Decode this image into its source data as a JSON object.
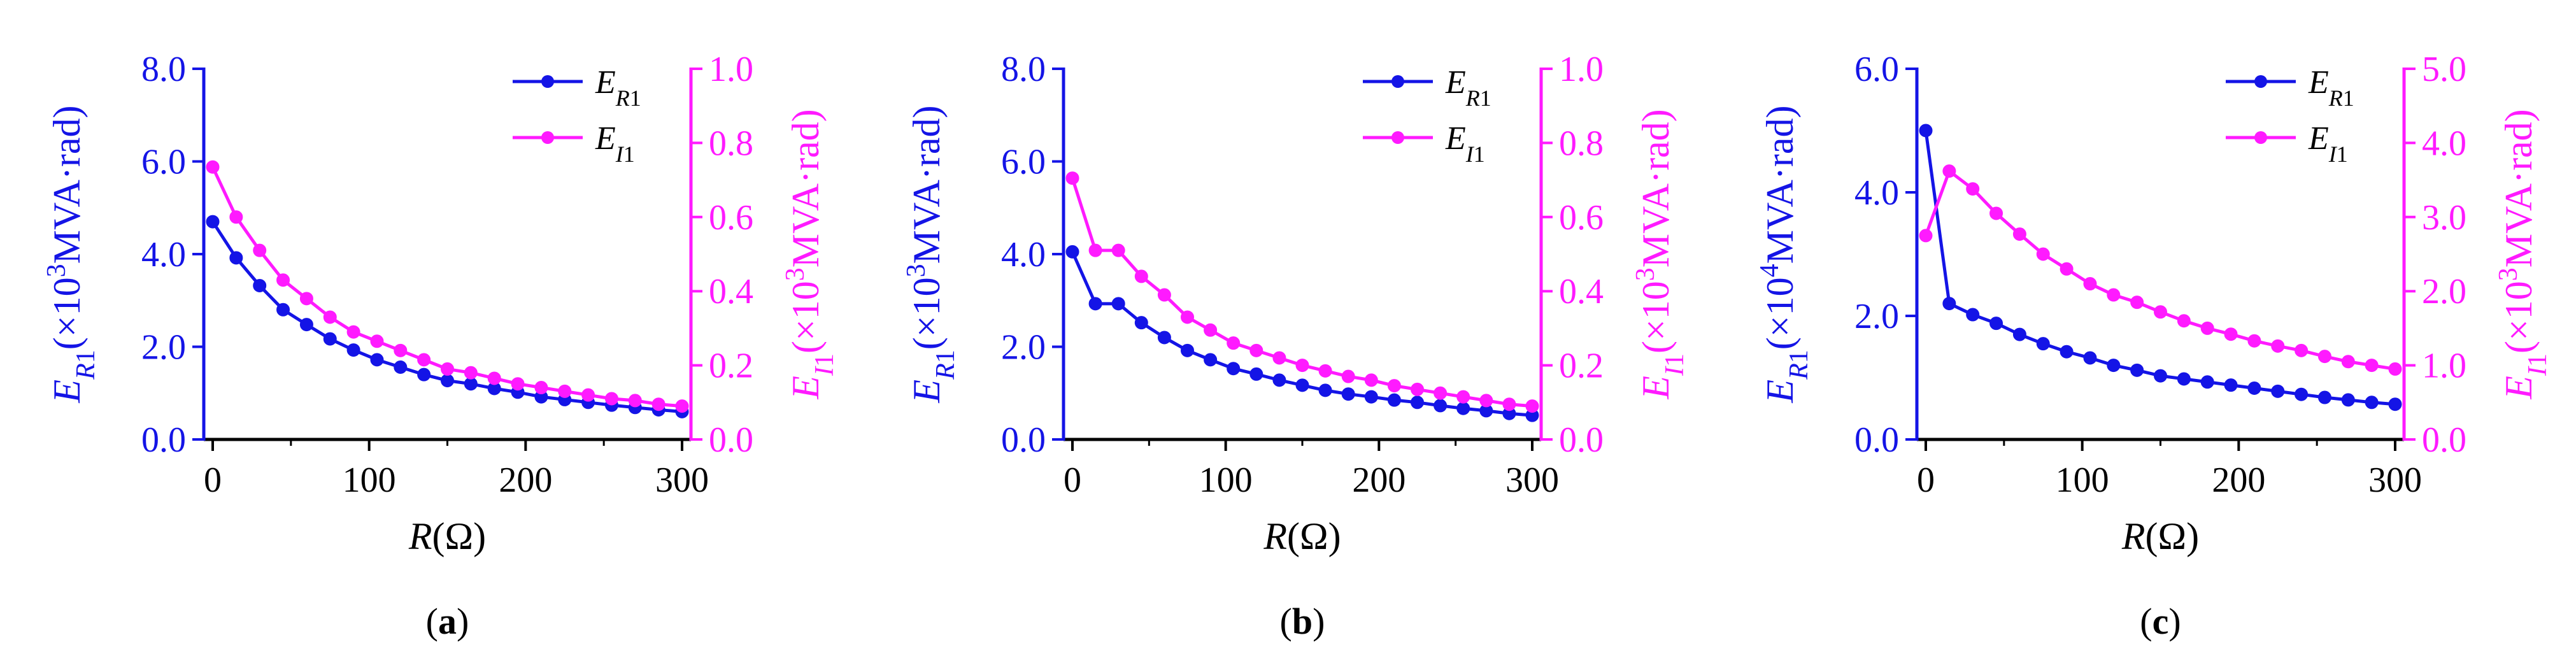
{
  "figure": {
    "colors": {
      "primary": "#1414e6",
      "secondary": "#ff1aff",
      "axis": "#000000"
    }
  },
  "chart_data": [
    {
      "type": "line",
      "panel_label": "(a)",
      "xlabel": "R(Ω)",
      "ylabel_left": "E_R1(×10^3MVA·rad)",
      "ylabel_right": "E_I1(×10^3MVA·rad)",
      "xlim": [
        0,
        300
      ],
      "ylim_left": [
        0,
        8
      ],
      "ylim_right": [
        0,
        1
      ],
      "xticks": [
        "0",
        "100",
        "200",
        "300"
      ],
      "yticks_left": [
        "0.0",
        "2.0",
        "4.0",
        "6.0",
        "8.0"
      ],
      "yticks_right": [
        "0.0",
        "0.2",
        "0.4",
        "0.6",
        "0.8",
        "1.0"
      ],
      "x": [
        0,
        15,
        30,
        45,
        60,
        75,
        90,
        105,
        120,
        135,
        150,
        165,
        180,
        195,
        210,
        225,
        240,
        255,
        270,
        285,
        300
      ],
      "series": [
        {
          "name": "E_R1",
          "axis": "left",
          "color": "#1414e6",
          "values": [
            4.7,
            3.92,
            3.32,
            2.8,
            2.48,
            2.17,
            1.93,
            1.72,
            1.56,
            1.4,
            1.27,
            1.2,
            1.1,
            1.02,
            0.92,
            0.86,
            0.8,
            0.74,
            0.69,
            0.64,
            0.6
          ]
        },
        {
          "name": "E_I1",
          "axis": "right",
          "color": "#ff1aff",
          "values": [
            0.735,
            0.6,
            0.51,
            0.43,
            0.38,
            0.33,
            0.29,
            0.265,
            0.24,
            0.215,
            0.19,
            0.18,
            0.165,
            0.15,
            0.14,
            0.13,
            0.12,
            0.11,
            0.105,
            0.095,
            0.09
          ]
        }
      ]
    },
    {
      "type": "line",
      "panel_label": "(b)",
      "xlabel": "R(Ω)",
      "ylabel_left": "E_R1(×10^3MVA·rad)",
      "ylabel_right": "E_I1(×10^3MVA·rad)",
      "xlim": [
        0,
        300
      ],
      "ylim_left": [
        0,
        8
      ],
      "ylim_right": [
        0,
        1
      ],
      "xticks": [
        "0",
        "100",
        "200",
        "300"
      ],
      "yticks_left": [
        "0.0",
        "2.0",
        "4.0",
        "6.0",
        "8.0"
      ],
      "yticks_right": [
        "0.0",
        "0.2",
        "0.4",
        "0.6",
        "0.8",
        "1.0"
      ],
      "x": [
        0,
        15,
        30,
        45,
        60,
        75,
        90,
        105,
        120,
        135,
        150,
        165,
        180,
        195,
        210,
        225,
        240,
        255,
        270,
        285,
        300
      ],
      "series": [
        {
          "name": "E_R1",
          "axis": "left",
          "color": "#1414e6",
          "values": [
            4.05,
            2.93,
            2.93,
            2.52,
            2.2,
            1.92,
            1.72,
            1.53,
            1.41,
            1.28,
            1.17,
            1.06,
            0.98,
            0.92,
            0.85,
            0.8,
            0.73,
            0.67,
            0.62,
            0.56,
            0.52
          ]
        },
        {
          "name": "E_I1",
          "axis": "right",
          "color": "#ff1aff",
          "values": [
            0.705,
            0.51,
            0.51,
            0.44,
            0.39,
            0.33,
            0.295,
            0.26,
            0.24,
            0.22,
            0.2,
            0.185,
            0.17,
            0.16,
            0.145,
            0.135,
            0.125,
            0.115,
            0.105,
            0.095,
            0.09
          ]
        }
      ]
    },
    {
      "type": "line",
      "panel_label": "(c)",
      "xlabel": "R(Ω)",
      "ylabel_left": "E_R1(×10^4MVA·rad)",
      "ylabel_right": "E_I1(×10^3MVA·rad)",
      "xlim": [
        0,
        300
      ],
      "ylim_left": [
        0,
        6
      ],
      "ylim_right": [
        0,
        5
      ],
      "xticks": [
        "0",
        "100",
        "200",
        "300"
      ],
      "yticks_left": [
        "0.0",
        "2.0",
        "4.0",
        "6.0"
      ],
      "yticks_right": [
        "0.0",
        "1.0",
        "2.0",
        "3.0",
        "4.0",
        "5.0"
      ],
      "x": [
        0,
        15,
        30,
        45,
        60,
        75,
        90,
        105,
        120,
        135,
        150,
        165,
        180,
        195,
        210,
        225,
        240,
        255,
        270,
        285,
        300
      ],
      "series": [
        {
          "name": "E_R1",
          "axis": "left",
          "color": "#1414e6",
          "values": [
            5.0,
            2.2,
            2.02,
            1.88,
            1.7,
            1.55,
            1.42,
            1.32,
            1.2,
            1.12,
            1.03,
            0.98,
            0.93,
            0.88,
            0.83,
            0.78,
            0.73,
            0.68,
            0.64,
            0.6,
            0.57
          ]
        },
        {
          "name": "E_I1",
          "axis": "right",
          "color": "#ff1aff",
          "values": [
            2.75,
            3.62,
            3.38,
            3.05,
            2.77,
            2.5,
            2.3,
            2.1,
            1.95,
            1.85,
            1.72,
            1.6,
            1.5,
            1.42,
            1.33,
            1.26,
            1.2,
            1.12,
            1.05,
            1.0,
            0.95
          ]
        }
      ]
    }
  ]
}
